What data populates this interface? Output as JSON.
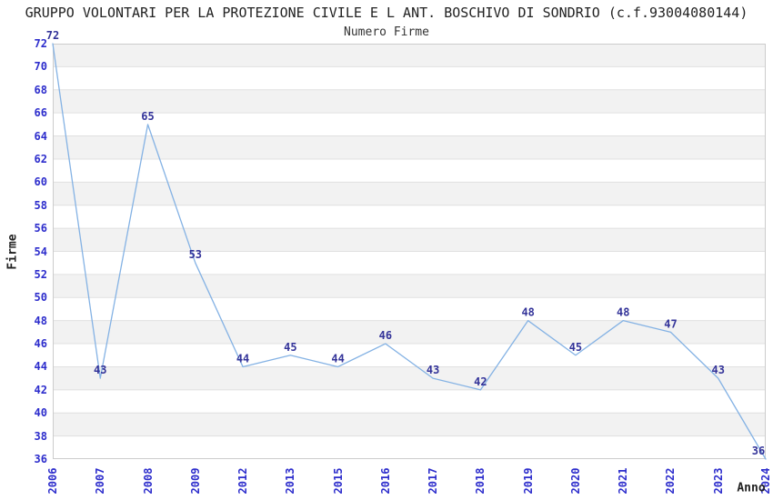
{
  "colors": {
    "background": "#ffffff",
    "line": "#84b2e4",
    "band_gray": "#f2f2f2",
    "band_white": "#ffffff",
    "gridline": "#e0e0e0",
    "plot_border": "#cccccc",
    "tick_label": "#2d2dcc",
    "data_label": "#333399",
    "title_text": "#222222"
  },
  "chart_data": {
    "type": "line",
    "title": "GRUPPO VOLONTARI PER LA PROTEZIONE CIVILE E L ANT. BOSCHIVO DI SONDRIO (c.f.93004080144)",
    "subtitle": "Numero Firme",
    "xlabel": "Anno",
    "ylabel": "Firme",
    "categories": [
      "2006",
      "2007",
      "2008",
      "2009",
      "2012",
      "2013",
      "2015",
      "2016",
      "2017",
      "2018",
      "2019",
      "2020",
      "2021",
      "2022",
      "2023",
      "2024"
    ],
    "series": [
      {
        "name": "Numero Firme",
        "values": [
          72,
          43,
          65,
          53,
          44,
          45,
          44,
          46,
          43,
          42,
          48,
          45,
          48,
          47,
          43,
          36
        ]
      }
    ],
    "ylim": [
      36,
      72
    ],
    "ytick_step": 2,
    "grid": "horizontal gridlines with alternating gray/white bands every 2 units",
    "legend": "none",
    "data_labels": true,
    "markers": "none"
  }
}
